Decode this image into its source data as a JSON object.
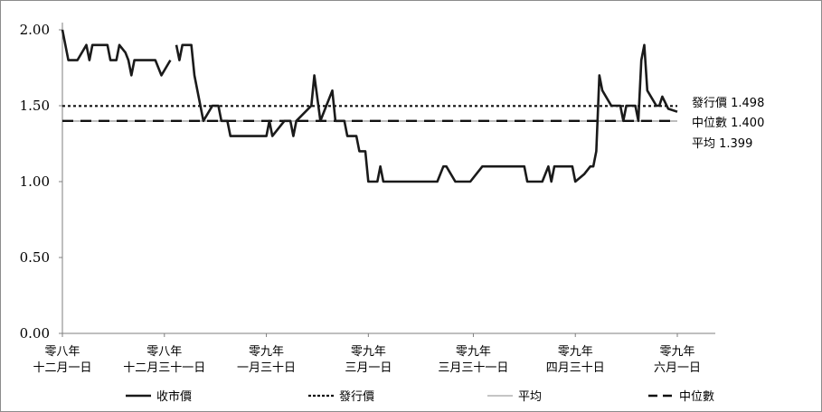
{
  "chart_data": {
    "type": "line",
    "y_ticks": [
      "2.00",
      "1.50",
      "1.00",
      "0.50",
      "0.00"
    ],
    "y_tick_values": [
      2.0,
      1.5,
      1.0,
      0.5,
      0.0
    ],
    "ylim": [
      0,
      2.0
    ],
    "grid": false,
    "legend_position": "bottom",
    "categories": [
      [
        "零八年",
        "十二月一日"
      ],
      [
        "零八年",
        "十二月三十一日"
      ],
      [
        "零九年",
        "一月三十日"
      ],
      [
        "零九年",
        "三月一日"
      ],
      [
        "零九年",
        "三月三十一日"
      ],
      [
        "零九年",
        "四月三十日"
      ],
      [
        "零九年",
        "六月一日"
      ]
    ],
    "reference_lines": [
      {
        "name": "發行價",
        "value": 1.498,
        "label": "發行價 1.498",
        "style": "dotted",
        "color": "#111111"
      },
      {
        "name": "中位數",
        "value": 1.4,
        "label": "中位數 1.400",
        "style": "dashed",
        "color": "#111111"
      },
      {
        "name": "平均",
        "value": 1.399,
        "label": "平均 1.399",
        "style": "solid",
        "color": "#bdbdbd"
      }
    ],
    "series": [
      {
        "name": "收市價",
        "color": "#1a1a1a",
        "segments": [
          [
            [
              0,
              2.0
            ],
            [
              2,
              1.8
            ],
            [
              5,
              1.8
            ],
            [
              8,
              1.9
            ],
            [
              9,
              1.8
            ],
            [
              10,
              1.9
            ],
            [
              15,
              1.9
            ],
            [
              16,
              1.8
            ],
            [
              18,
              1.8
            ],
            [
              19,
              1.9
            ],
            [
              21,
              1.85
            ],
            [
              22,
              1.8
            ],
            [
              23,
              1.7
            ],
            [
              24,
              1.8
            ],
            [
              31,
              1.8
            ],
            [
              33,
              1.7
            ],
            [
              36,
              1.8
            ]
          ],
          [
            [
              38,
              1.9
            ],
            [
              39,
              1.8
            ],
            [
              40,
              1.9
            ],
            [
              43,
              1.9
            ],
            [
              44,
              1.7
            ],
            [
              45,
              1.6
            ],
            [
              47,
              1.4
            ],
            [
              50,
              1.5
            ],
            [
              52,
              1.5
            ],
            [
              53,
              1.4
            ],
            [
              55,
              1.4
            ],
            [
              56,
              1.3
            ],
            [
              68,
              1.3
            ],
            [
              69,
              1.4
            ],
            [
              70,
              1.3
            ],
            [
              74,
              1.4
            ],
            [
              76,
              1.4
            ],
            [
              77,
              1.3
            ],
            [
              78,
              1.4
            ],
            [
              83,
              1.5
            ],
            [
              84,
              1.7
            ],
            [
              86,
              1.4
            ],
            [
              90,
              1.6
            ],
            [
              91,
              1.4
            ],
            [
              94,
              1.4
            ],
            [
              95,
              1.3
            ],
            [
              98,
              1.3
            ],
            [
              99,
              1.2
            ],
            [
              101,
              1.2
            ],
            [
              102,
              1.0
            ],
            [
              105,
              1.0
            ],
            [
              106,
              1.1
            ],
            [
              107,
              1.0
            ],
            [
              125,
              1.0
            ],
            [
              127,
              1.1
            ],
            [
              128,
              1.1
            ],
            [
              131,
              1.0
            ],
            [
              136,
              1.0
            ],
            [
              140,
              1.1
            ],
            [
              154,
              1.1
            ],
            [
              155,
              1.0
            ],
            [
              160,
              1.0
            ],
            [
              162,
              1.1
            ],
            [
              163,
              1.0
            ],
            [
              164,
              1.1
            ],
            [
              170,
              1.1
            ],
            [
              171,
              1.0
            ],
            [
              174,
              1.05
            ],
            [
              176,
              1.1
            ],
            [
              177,
              1.1
            ],
            [
              178,
              1.2
            ],
            [
              179,
              1.7
            ],
            [
              180,
              1.6
            ],
            [
              183,
              1.5
            ],
            [
              186,
              1.5
            ],
            [
              187,
              1.4
            ],
            [
              188,
              1.5
            ],
            [
              191,
              1.5
            ],
            [
              192,
              1.4
            ],
            [
              193,
              1.8
            ],
            [
              194,
              1.9
            ],
            [
              195,
              1.6
            ],
            [
              198,
              1.5
            ],
            [
              199,
              1.5
            ],
            [
              200,
              1.56
            ],
            [
              202,
              1.48
            ],
            [
              205,
              1.46
            ]
          ]
        ]
      }
    ],
    "legend": [
      {
        "label": "收市價",
        "style": "solid",
        "color": "#1a1a1a"
      },
      {
        "label": "發行價",
        "style": "dotted",
        "color": "#111111"
      },
      {
        "label": "平均",
        "style": "solid",
        "color": "#bdbdbd"
      },
      {
        "label": "中位數",
        "style": "dashed",
        "color": "#111111"
      }
    ]
  }
}
